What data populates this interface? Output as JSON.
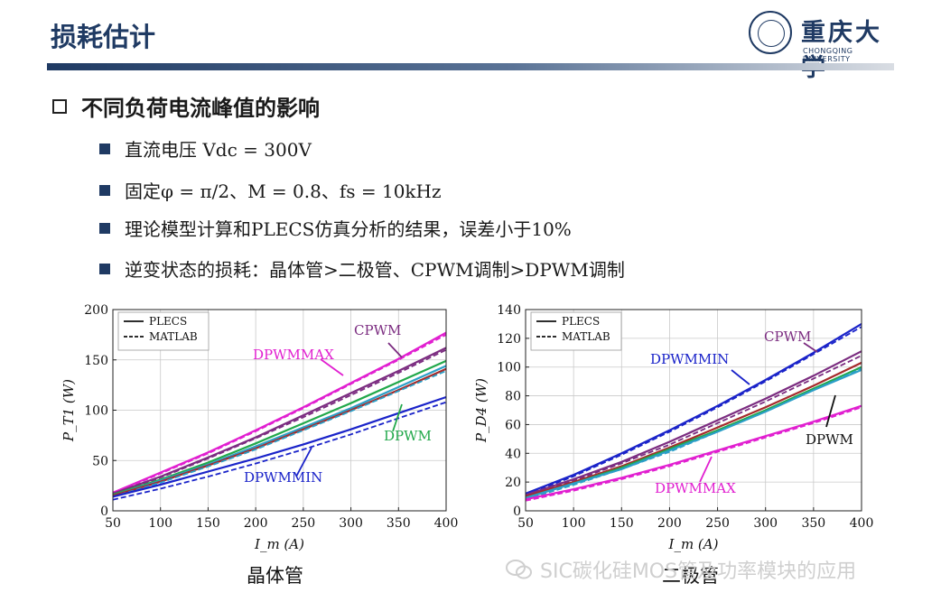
{
  "slide": {
    "title": "损耗估计",
    "logo_cn": "重庆大学",
    "logo_en": "CHONGQING UNIVERSITY",
    "heading": "不同负荷电流峰值的影响",
    "bullets": [
      "直流电压 Vdc = 300V",
      "固定φ = π/2、M = 0.8、fs = 10kHz",
      "理论模型计算和PLECS仿真分析的结果，误差小于10%",
      "逆变状态的损耗：晶体管>二极管、CPWM调制>DPWM调制"
    ],
    "caption_left": "晶体管",
    "caption_right": "二极管",
    "watermark": "SIC碳化硅MOS管及功率模块的应用"
  },
  "colors": {
    "title": "#1f3a63",
    "dpwmmax": "#e11fd0",
    "cpwm": "#7b2c80",
    "dpwm_green": "#21a84a",
    "dpwm_cyan": "#2b9fc7",
    "dpwmmin": "#1a23c9",
    "dpwm_dark": "#a52a2a"
  },
  "chart_data": [
    {
      "type": "line",
      "caption": "晶体管",
      "xlabel": "I_m (A)",
      "ylabel": "P_T1 (W)",
      "xlim": [
        50,
        400
      ],
      "ylim": [
        0,
        200
      ],
      "xticks": [
        50,
        100,
        150,
        200,
        250,
        300,
        350,
        400
      ],
      "yticks": [
        0,
        50,
        100,
        150,
        200
      ],
      "grid": true,
      "legend": {
        "position": "top-left",
        "entries": [
          {
            "label": "PLECS",
            "style": "solid"
          },
          {
            "label": "MATLAB",
            "style": "dashed"
          }
        ]
      },
      "annotations": [
        {
          "text": "CPWM",
          "color": "#7b2c80"
        },
        {
          "text": "DPWMMAX",
          "color": "#e11fd0"
        },
        {
          "text": "DPWM",
          "color": "#21a84a"
        },
        {
          "text": "DPWMMIN",
          "color": "#1a23c9"
        }
      ],
      "series": [
        {
          "group": "DPWMMAX",
          "color": "#e11fd0",
          "style": "solid",
          "x": [
            50,
            100,
            150,
            200,
            250,
            300,
            350,
            400
          ],
          "y": [
            18,
            38,
            58,
            80,
            103,
            127,
            151,
            177
          ]
        },
        {
          "group": "DPWMMAX",
          "color": "#e11fd0",
          "style": "dashed",
          "x": [
            50,
            100,
            150,
            200,
            250,
            300,
            350,
            400
          ],
          "y": [
            17,
            37,
            57,
            79,
            102,
            126,
            150,
            175
          ]
        },
        {
          "group": "CPWM",
          "color": "#7b2c80",
          "style": "solid",
          "x": [
            50,
            100,
            150,
            200,
            250,
            300,
            350,
            400
          ],
          "y": [
            17,
            34,
            53,
            73,
            95,
            117,
            139,
            162
          ]
        },
        {
          "group": "CPWM",
          "color": "#7b2c80",
          "style": "dashed",
          "x": [
            50,
            100,
            150,
            200,
            250,
            300,
            350,
            400
          ],
          "y": [
            16,
            33,
            52,
            72,
            93,
            115,
            137,
            160
          ]
        },
        {
          "group": "DPWM",
          "color": "#21a84a",
          "style": "solid",
          "x": [
            50,
            100,
            150,
            200,
            250,
            300,
            350,
            400
          ],
          "y": [
            16,
            31,
            48,
            67,
            87,
            107,
            128,
            149
          ]
        },
        {
          "group": "DPWM",
          "color": "#2b9fc7",
          "style": "solid",
          "x": [
            50,
            100,
            150,
            200,
            250,
            300,
            350,
            400
          ],
          "y": [
            15,
            30,
            46,
            64,
            83,
            102,
            123,
            144
          ]
        },
        {
          "group": "DPWM",
          "color": "#a52a2a",
          "style": "solid",
          "x": [
            50,
            100,
            150,
            200,
            250,
            300,
            350,
            400
          ],
          "y": [
            15,
            29,
            45,
            62,
            81,
            100,
            120,
            141
          ]
        },
        {
          "group": "DPWM",
          "color": "#2b9fc7",
          "style": "dashed",
          "x": [
            50,
            100,
            150,
            200,
            250,
            300,
            350,
            400
          ],
          "y": [
            14,
            28,
            44,
            61,
            80,
            99,
            119,
            139
          ]
        },
        {
          "group": "DPWMMIN",
          "color": "#1a23c9",
          "style": "solid",
          "x": [
            50,
            100,
            150,
            200,
            250,
            300,
            350,
            400
          ],
          "y": [
            14,
            26,
            39,
            52,
            66,
            81,
            97,
            113
          ]
        },
        {
          "group": "DPWMMIN",
          "color": "#1a23c9",
          "style": "dashed",
          "x": [
            50,
            100,
            150,
            200,
            250,
            300,
            350,
            400
          ],
          "y": [
            11,
            22,
            34,
            47,
            61,
            76,
            92,
            108
          ]
        }
      ]
    },
    {
      "type": "line",
      "caption": "二极管",
      "xlabel": "I_m (A)",
      "ylabel": "P_D4 (W)",
      "xlim": [
        50,
        400
      ],
      "ylim": [
        0,
        140
      ],
      "xticks": [
        50,
        100,
        150,
        200,
        250,
        300,
        350,
        400
      ],
      "yticks": [
        0,
        20,
        40,
        60,
        80,
        100,
        120,
        140
      ],
      "grid": true,
      "legend": {
        "position": "top-left",
        "entries": [
          {
            "label": "PLECS",
            "style": "solid"
          },
          {
            "label": "MATLAB",
            "style": "dashed"
          }
        ]
      },
      "annotations": [
        {
          "text": "CPWM",
          "color": "#7b2c80"
        },
        {
          "text": "DPWMMIN",
          "color": "#1a23c9"
        },
        {
          "text": "DPWM",
          "color": "#111111"
        },
        {
          "text": "DPWMMAX",
          "color": "#e11fd0"
        }
      ],
      "series": [
        {
          "group": "DPWMMIN",
          "color": "#1a23c9",
          "style": "solid",
          "x": [
            50,
            100,
            150,
            200,
            250,
            300,
            350,
            400
          ],
          "y": [
            12,
            25,
            40,
            56,
            73,
            91,
            110,
            130
          ]
        },
        {
          "group": "DPWMMIN",
          "color": "#1a23c9",
          "style": "dashed",
          "x": [
            50,
            100,
            150,
            200,
            250,
            300,
            350,
            400
          ],
          "y": [
            11,
            24,
            39,
            55,
            72,
            90,
            109,
            128
          ]
        },
        {
          "group": "CPWM",
          "color": "#7b2c80",
          "style": "solid",
          "x": [
            50,
            100,
            150,
            200,
            250,
            300,
            350,
            400
          ],
          "y": [
            11,
            22,
            34,
            48,
            63,
            78,
            94,
            111
          ]
        },
        {
          "group": "CPWM",
          "color": "#7b2c80",
          "style": "dashed",
          "x": [
            50,
            100,
            150,
            200,
            250,
            300,
            350,
            400
          ],
          "y": [
            10,
            21,
            33,
            46,
            61,
            76,
            92,
            108
          ]
        },
        {
          "group": "DPWM",
          "color": "#a52a2a",
          "style": "solid",
          "x": [
            50,
            100,
            150,
            200,
            250,
            300,
            350,
            400
          ],
          "y": [
            10,
            20,
            31,
            44,
            58,
            72,
            87,
            103
          ]
        },
        {
          "group": "DPWM",
          "color": "#21a84a",
          "style": "solid",
          "x": [
            50,
            100,
            150,
            200,
            250,
            300,
            350,
            400
          ],
          "y": [
            9,
            19,
            30,
            43,
            56,
            70,
            85,
            100
          ]
        },
        {
          "group": "DPWM",
          "color": "#2b9fc7",
          "style": "solid",
          "x": [
            50,
            100,
            150,
            200,
            250,
            300,
            350,
            400
          ],
          "y": [
            9,
            19,
            29,
            42,
            55,
            69,
            84,
            98
          ]
        },
        {
          "group": "DPWM",
          "color": "#2b9fc7",
          "style": "dashed",
          "x": [
            50,
            100,
            150,
            200,
            250,
            300,
            350,
            400
          ],
          "y": [
            8,
            18,
            29,
            41,
            55,
            69,
            84,
            99
          ]
        },
        {
          "group": "DPWMMAX",
          "color": "#e11fd0",
          "style": "solid",
          "x": [
            50,
            100,
            150,
            200,
            250,
            300,
            350,
            400
          ],
          "y": [
            8,
            15,
            23,
            32,
            42,
            52,
            62,
            73
          ]
        },
        {
          "group": "DPWMMAX",
          "color": "#e11fd0",
          "style": "dashed",
          "x": [
            50,
            100,
            150,
            200,
            250,
            300,
            350,
            400
          ],
          "y": [
            7,
            14,
            22,
            31,
            41,
            51,
            61,
            72
          ]
        }
      ]
    }
  ]
}
